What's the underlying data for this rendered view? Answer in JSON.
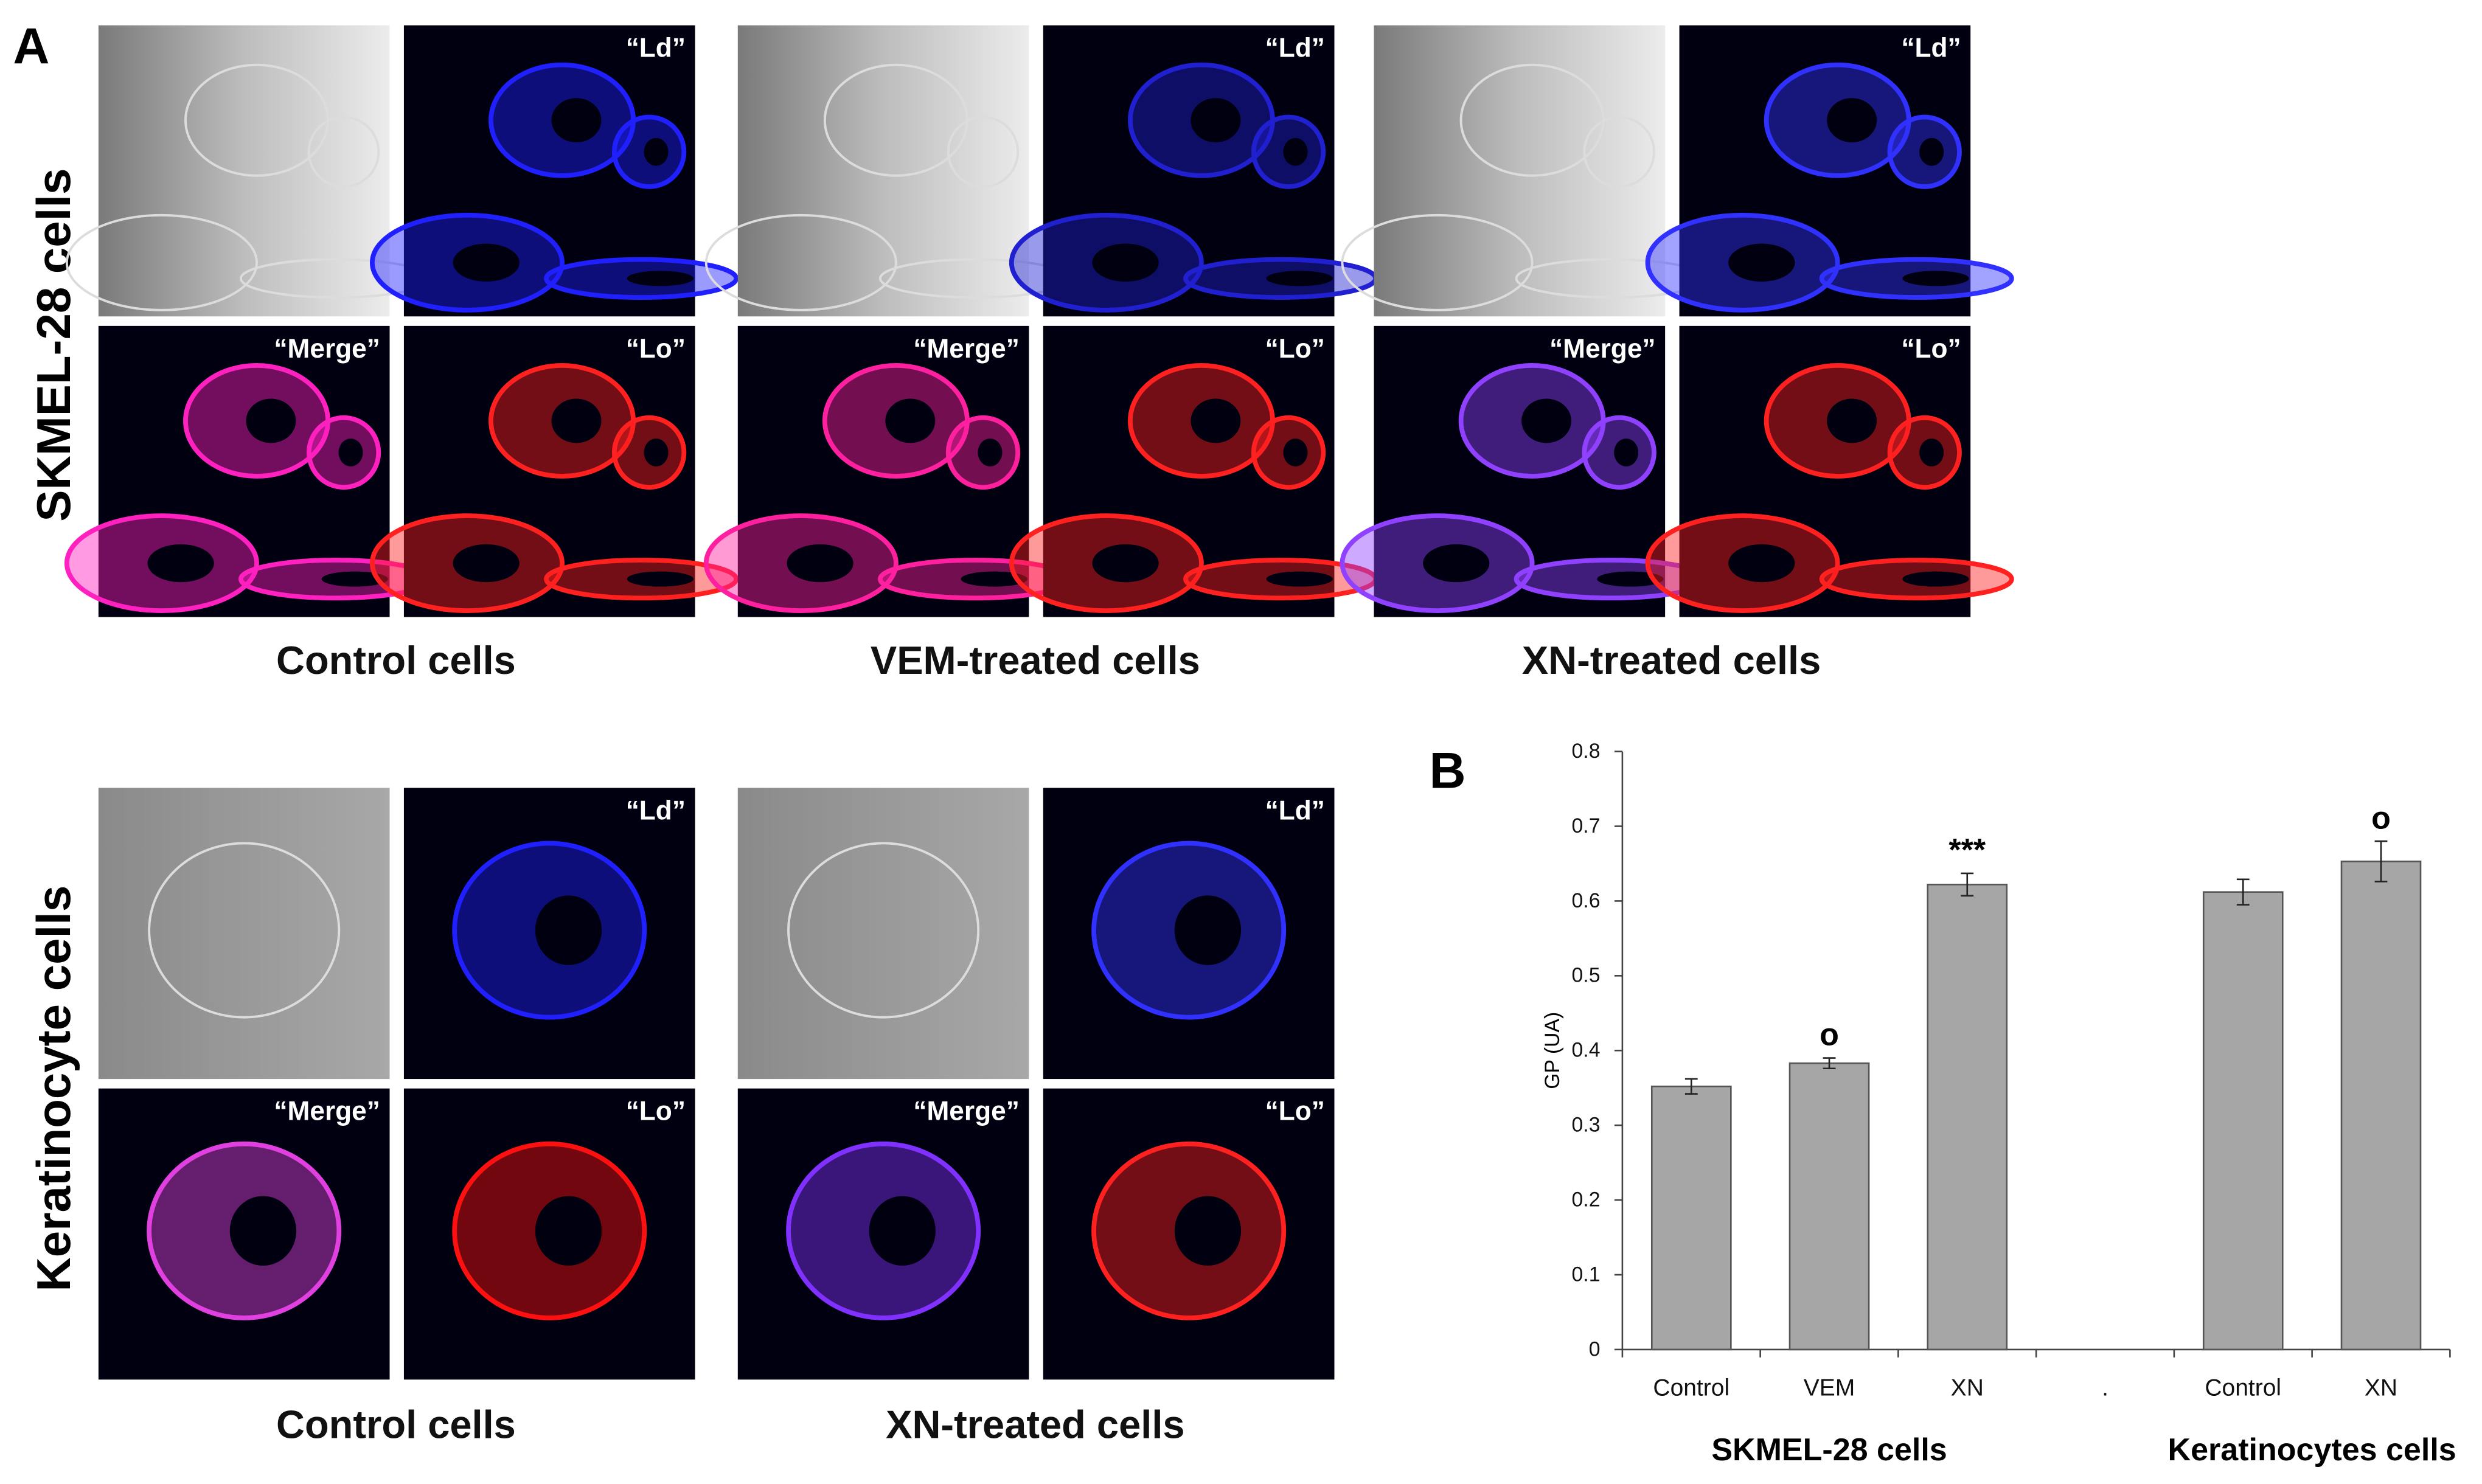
{
  "panel_a": {
    "label": "A",
    "rows": [
      {
        "label": "SKMEL-28 cells",
        "groups": [
          {
            "caption": "Control cells",
            "channels": [
              "“Ld”",
              "“Merge”",
              "“Lo”"
            ]
          },
          {
            "caption": "VEM-treated cells",
            "channels": [
              "“Ld”",
              "“Merge”",
              "“Lo”"
            ]
          },
          {
            "caption": "XN-treated cells",
            "channels": [
              "“Ld”",
              "“Merge”",
              "“Lo”"
            ]
          }
        ]
      },
      {
        "label": "Keratinocyte cells",
        "groups": [
          {
            "caption": "Control cells",
            "channels": [
              "“Ld”",
              "“Merge”",
              "“Lo”"
            ]
          },
          {
            "caption": "XN-treated cells",
            "channels": [
              "“Ld”",
              "“Merge”",
              "“Lo”"
            ]
          }
        ]
      }
    ]
  },
  "chart_data": {
    "type": "bar",
    "label": "B",
    "ylabel": "GP (UA)",
    "categories": [
      "Control",
      "VEM",
      "XN",
      ".",
      "Control",
      "XN"
    ],
    "values": [
      0.352,
      0.383,
      0.622,
      null,
      0.612,
      0.653
    ],
    "errors": [
      0.01,
      0.007,
      0.015,
      null,
      0.017,
      0.027
    ],
    "annotations": [
      null,
      "o",
      "***",
      null,
      null,
      "o"
    ],
    "groups": [
      {
        "label": "SKMEL-28 cells",
        "span": [
          0,
          2
        ]
      },
      {
        "label": "Keratinocytes cells",
        "span": [
          4,
          5
        ]
      }
    ],
    "color": "#a6a6a6",
    "ylim": [
      0,
      0.8
    ],
    "yticks": [
      0,
      0.1,
      0.2,
      0.3,
      0.4,
      0.5,
      0.6,
      0.7,
      0.8
    ]
  }
}
